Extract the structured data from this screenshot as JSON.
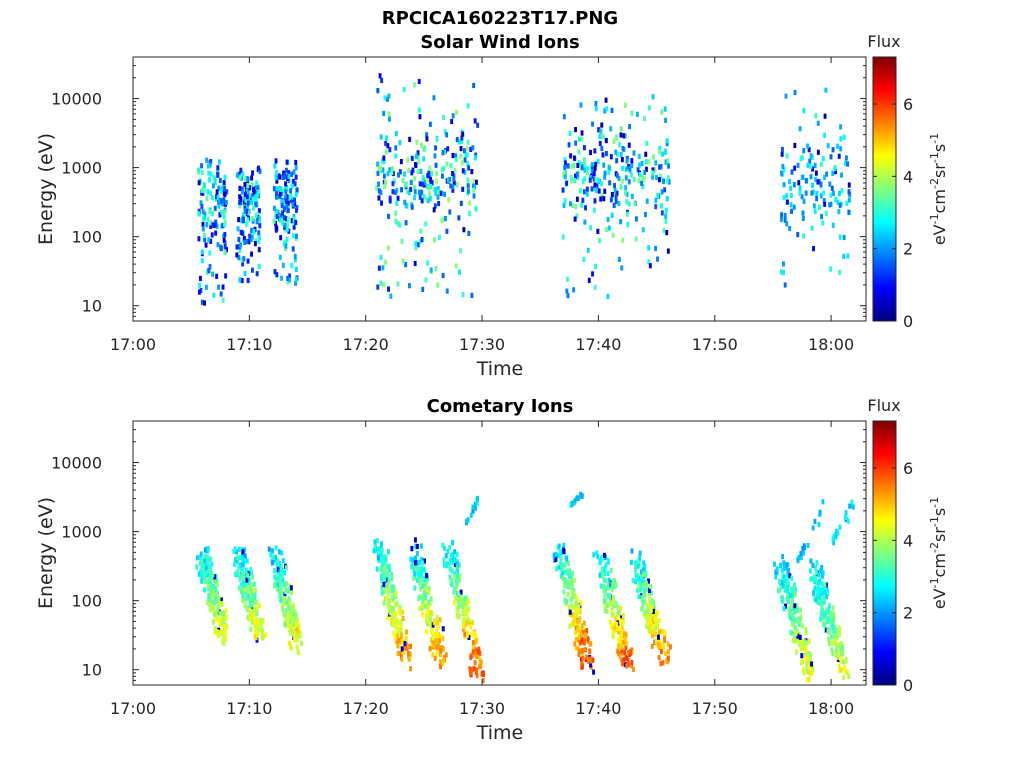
{
  "figure_title": "RPCICA160223T17.PNG",
  "colormap": [
    "#00007f",
    "#0000ff",
    "#007fff",
    "#00ffff",
    "#7fff7f",
    "#ffff00",
    "#ff7f00",
    "#ff0000",
    "#7f0000"
  ],
  "chart_data": [
    {
      "type": "heatmap",
      "title": "Solar Wind Ions",
      "xlabel": "Time",
      "ylabel": "Energy (eV)",
      "x_ticks": [
        "17:00",
        "17:10",
        "17:20",
        "17:30",
        "17:40",
        "17:50",
        "18:00"
      ],
      "x_range_minutes": [
        0,
        63
      ],
      "y_ticks": [
        "10",
        "100",
        "1000",
        "10000"
      ],
      "y_scale": "log",
      "y_range": [
        6,
        40000
      ],
      "colorbar": {
        "title": "Flux",
        "label": "eV-1cm-2sr-1s-1",
        "ticks": [
          "0",
          "2",
          "4",
          "6"
        ],
        "range": [
          0,
          7.3
        ]
      },
      "clusters": [
        {
          "t": [
            5.5,
            8.0
          ],
          "e": [
            10,
            1200
          ],
          "center": 250,
          "flux": [
            0.8,
            3.5
          ]
        },
        {
          "t": [
            8.8,
            10.8
          ],
          "e": [
            20,
            900
          ],
          "center": 250,
          "flux": [
            0.8,
            3.5
          ]
        },
        {
          "t": [
            12.0,
            14.0
          ],
          "e": [
            18,
            1200
          ],
          "center": 250,
          "flux": [
            0.8,
            3.5
          ]
        },
        {
          "t": [
            20.8,
            25.0
          ],
          "e": [
            12,
            20000
          ],
          "center": 800,
          "flux": [
            1.0,
            3.8
          ]
        },
        {
          "t": [
            25.0,
            29.5
          ],
          "e": [
            12,
            15000
          ],
          "center": 800,
          "flux": [
            1.0,
            4.0
          ]
        },
        {
          "t": [
            36.8,
            41.0
          ],
          "e": [
            8,
            10000
          ],
          "center": 700,
          "flux": [
            1.0,
            3.8
          ]
        },
        {
          "t": [
            41.0,
            46.0
          ],
          "e": [
            30,
            10000
          ],
          "center": 700,
          "flux": [
            1.5,
            3.8
          ]
        },
        {
          "t": [
            55.5,
            61.5
          ],
          "e": [
            17,
            15000
          ],
          "center": 700,
          "flux": [
            1.5,
            3.2
          ]
        }
      ]
    },
    {
      "type": "heatmap",
      "title": "Cometary Ions",
      "xlabel": "Time",
      "ylabel": "Energy (eV)",
      "x_ticks": [
        "17:00",
        "17:10",
        "17:20",
        "17:30",
        "17:40",
        "17:50",
        "18:00"
      ],
      "x_range_minutes": [
        0,
        63
      ],
      "y_ticks": [
        "10",
        "100",
        "1000",
        "10000"
      ],
      "y_scale": "log",
      "y_range": [
        6,
        40000
      ],
      "colorbar": {
        "title": "Flux",
        "label": "eV-1cm-2sr-1s-1",
        "ticks": [
          "0",
          "2",
          "4",
          "6"
        ],
        "range": [
          0,
          7.3
        ]
      },
      "streaks": [
        {
          "t": [
            5.8,
            7.6
          ],
          "e_top": 450,
          "e_bot": 30,
          "flux_top": 2.5,
          "flux_bot": 4.5
        },
        {
          "t": [
            9.0,
            10.8
          ],
          "e_top": 400,
          "e_bot": 28,
          "flux_top": 2.5,
          "flux_bot": 4.5
        },
        {
          "t": [
            12.0,
            14.0
          ],
          "e_top": 450,
          "e_bot": 22,
          "flux_top": 2.5,
          "flux_bot": 4.6
        },
        {
          "t": [
            21.0,
            23.4
          ],
          "e_top": 550,
          "e_bot": 13,
          "flux_top": 2.5,
          "flux_bot": 5.5
        },
        {
          "t": [
            24.0,
            26.4
          ],
          "e_top": 500,
          "e_bot": 13,
          "flux_top": 2.5,
          "flux_bot": 5.5
        },
        {
          "t": [
            27.0,
            29.6
          ],
          "e_top": 500,
          "e_bot": 8,
          "flux_top": 2.5,
          "flux_bot": 6.0
        },
        {
          "t": [
            36.5,
            39.0
          ],
          "e_top": 450,
          "e_bot": 12,
          "flux_top": 2.5,
          "flux_bot": 6.0
        },
        {
          "t": [
            40.0,
            42.4
          ],
          "e_top": 400,
          "e_bot": 12,
          "flux_top": 2.5,
          "flux_bot": 5.8
        },
        {
          "t": [
            43.0,
            45.6
          ],
          "e_top": 350,
          "e_bot": 14,
          "flux_top": 2.5,
          "flux_bot": 5.5
        },
        {
          "t": [
            55.5,
            58.0
          ],
          "e_top": 300,
          "e_bot": 8,
          "flux_top": 2.5,
          "flux_bot": 4.5
        },
        {
          "t": [
            58.5,
            61.0
          ],
          "e_top": 250,
          "e_bot": 8,
          "flux_top": 2.5,
          "flux_bot": 4.5
        }
      ],
      "sparse": [
        {
          "t": [
            57.0,
            59.5
          ],
          "e": [
            200,
            3500
          ],
          "flux": [
            2.0,
            2.8
          ]
        },
        {
          "t": [
            59.8,
            61.8
          ],
          "e": [
            400,
            3000
          ],
          "flux": [
            2.0,
            2.8
          ]
        },
        {
          "t": [
            28.5,
            29.5
          ],
          "e": [
            1000,
            3000
          ],
          "flux": [
            2.0,
            2.8
          ]
        },
        {
          "t": [
            37.5,
            38.5
          ],
          "e": [
            2000,
            3500
          ],
          "flux": [
            2.0,
            2.8
          ]
        }
      ]
    }
  ]
}
